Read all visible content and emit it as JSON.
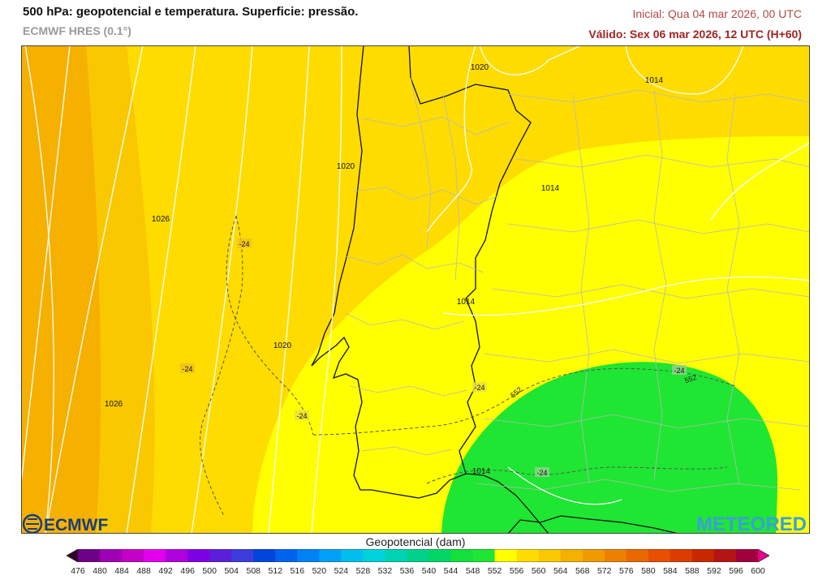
{
  "header": {
    "title": "500 hPa: geopotencial e temperatura. Superficie: pressão.",
    "model": "ECMWF HRES (0.1°)",
    "initial": "Inicial: Qua 04 mar 2026, 00 UTC",
    "valid": "Válido: Sex 06 mar 2026, 12 UTC (H+60)"
  },
  "map": {
    "region": "Iberian Peninsula",
    "isobar_labels": [
      "1020",
      "1014",
      "1020",
      "1014",
      "1026",
      "1014",
      "1020",
      "1026",
      "1014"
    ],
    "isotherm_labels": [
      "-24",
      "-24",
      "-24",
      "-24",
      "-24",
      "-24"
    ],
    "geopotential_labels": [
      "552",
      "552"
    ],
    "field_colors": {
      "g564": "#f6b000",
      "g560": "#f9c800",
      "g556": "#fedc00",
      "g552": "#ffff00",
      "g548": "#1ee632"
    }
  },
  "logos": {
    "left": "ECMWF",
    "right": "METEORED"
  },
  "legend": {
    "title": "Geopotencial (dam)",
    "ticks": [
      "476",
      "480",
      "484",
      "488",
      "492",
      "496",
      "500",
      "504",
      "508",
      "512",
      "516",
      "520",
      "524",
      "528",
      "532",
      "536",
      "540",
      "544",
      "548",
      "552",
      "556",
      "560",
      "564",
      "568",
      "572",
      "576",
      "580",
      "584",
      "588",
      "592",
      "596",
      "600"
    ],
    "colors": [
      "#300028",
      "#6e0088",
      "#a000b4",
      "#c400c8",
      "#e400ee",
      "#b000e0",
      "#8000e6",
      "#5a1edc",
      "#3c3cdc",
      "#0046dc",
      "#0064f0",
      "#0082f6",
      "#00a0f6",
      "#00beee",
      "#00d2dc",
      "#00d2b4",
      "#00d28c",
      "#00d664",
      "#14e03c",
      "#1ee632",
      "#ffff00",
      "#fedc00",
      "#f9c800",
      "#f6b000",
      "#f09a00",
      "#ee8000",
      "#ea6800",
      "#e65000",
      "#dc3c00",
      "#c82800",
      "#b41414",
      "#a0003c",
      "#e6008c"
    ]
  }
}
